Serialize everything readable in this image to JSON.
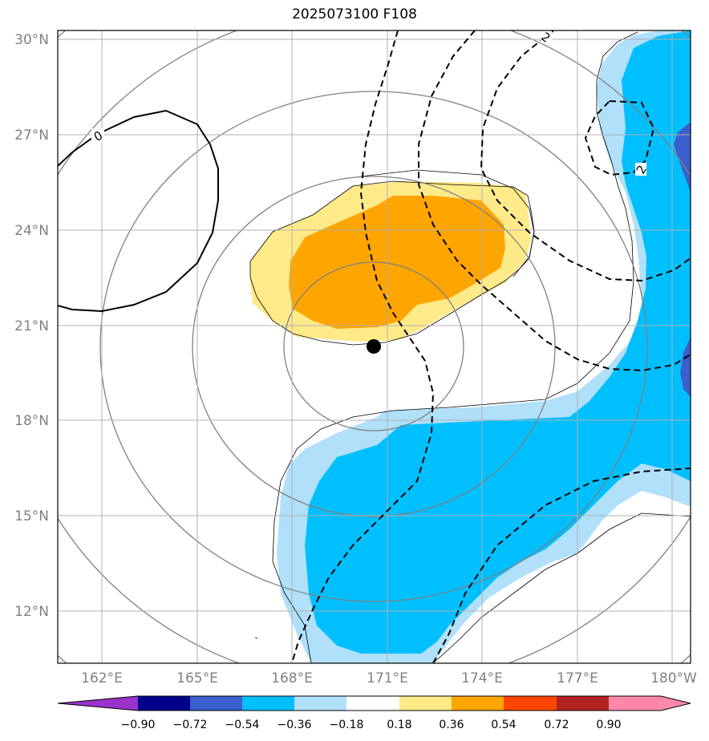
{
  "title": "2025073100 F108",
  "lat_labels": [
    "30°N",
    "27°N",
    "24°N",
    "21°N",
    "18°N",
    "15°N",
    "12°N"
  ],
  "lon_labels": [
    "162°E",
    "165°E",
    "168°E",
    "171°E",
    "174°E",
    "177°E",
    "180°W"
  ],
  "contour_labels": {
    "zero": "0",
    "two_top": "2",
    "two_right": "2"
  },
  "colorbar": {
    "ticks": [
      "−0.90",
      "−0.72",
      "−0.54",
      "−0.36",
      "−0.18",
      "0.18",
      "0.36",
      "0.54",
      "0.72",
      "0.90"
    ],
    "colors": [
      "#9933cc",
      "#00008b",
      "#3b5fcd",
      "#00bfff",
      "#b0e0fa",
      "#ffffff",
      "#ffea8a",
      "#ffa500",
      "#ff4500",
      "#b22222",
      "#ff88aa"
    ]
  },
  "colors": {
    "orange": "#ffa500",
    "light_yellow": "#ffea8a",
    "deep_sky": "#00bfff",
    "light_blue": "#b0e0fa",
    "royal_blue": "#3b5fcd",
    "grid": "#b0b0b0",
    "ring": "#808080"
  }
}
